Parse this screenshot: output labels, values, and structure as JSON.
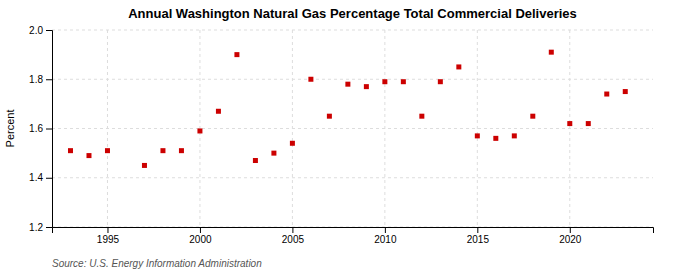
{
  "chart_data": {
    "type": "scatter",
    "title": "Annual Washington Natural Gas Percentage Total Commercial Deliveries",
    "ylabel": "Percent",
    "source": "Source: U.S. Energy Information Administration",
    "x": [
      1993,
      1994,
      1995,
      1997,
      1998,
      1999,
      2000,
      2001,
      2002,
      2003,
      2004,
      2005,
      2006,
      2007,
      2008,
      2009,
      2010,
      2011,
      2012,
      2013,
      2014,
      2015,
      2016,
      2017,
      2018,
      2019,
      2020,
      2021,
      2022,
      2023
    ],
    "values": [
      1.51,
      1.49,
      1.51,
      1.45,
      1.51,
      1.51,
      1.59,
      1.67,
      1.9,
      1.47,
      1.5,
      1.54,
      1.8,
      1.65,
      1.78,
      1.77,
      1.79,
      1.79,
      1.65,
      1.79,
      1.85,
      1.57,
      1.56,
      1.57,
      1.65,
      1.91,
      1.62,
      1.62,
      1.74,
      1.75
    ],
    "color": "#cc0000",
    "marker": "square",
    "xlim": [
      1992,
      2024.5
    ],
    "ylim": [
      1.2,
      2.0
    ],
    "xticks": [
      1995,
      2000,
      2005,
      2010,
      2015,
      2020
    ],
    "yticks": [
      1.2,
      1.4,
      1.6,
      1.8,
      {
        "value": 2.0,
        "label": "2.0"
      }
    ],
    "grid": true
  }
}
